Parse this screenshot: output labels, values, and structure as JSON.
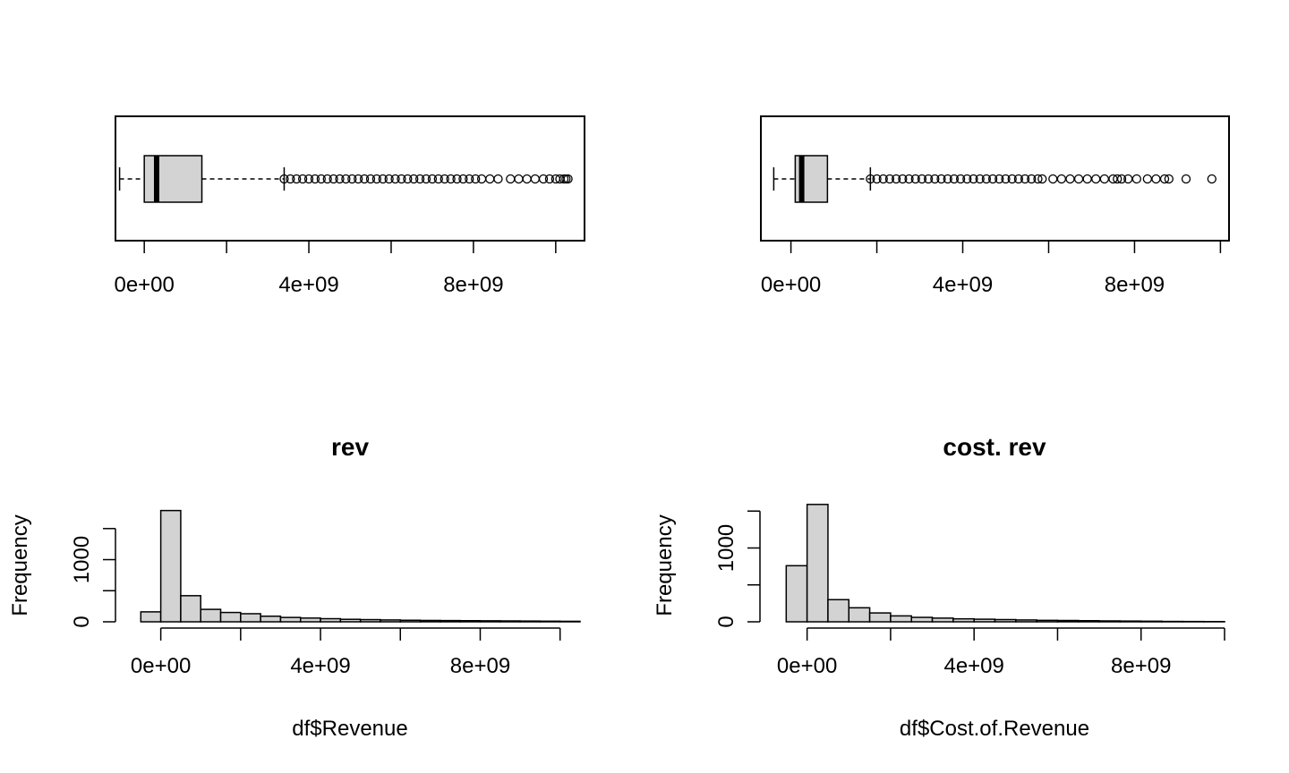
{
  "chart_data": [
    {
      "type": "boxplot",
      "orientation": "horizontal",
      "title": "",
      "xlabel": "",
      "ylabel": "",
      "xlim": [
        -700000000,
        10700000000
      ],
      "x_ticks": [
        0,
        2000000000,
        4000000000,
        6000000000,
        8000000000,
        10000000000
      ],
      "x_tick_labels": [
        "0e+00",
        "4e+09",
        "8e+09"
      ],
      "x_tick_label_values": [
        0,
        4000000000,
        8000000000
      ],
      "stats": {
        "min": -600000000,
        "q1": 0,
        "median": 300000000,
        "q3": 1400000000,
        "max": 3400000000
      },
      "outliers": [
        3400000000,
        3550000000,
        3700000000,
        3850000000,
        4000000000,
        4150000000,
        4300000000,
        4450000000,
        4600000000,
        4750000000,
        4900000000,
        5050000000,
        5200000000,
        5350000000,
        5500000000,
        5650000000,
        5800000000,
        5950000000,
        6100000000,
        6250000000,
        6400000000,
        6550000000,
        6700000000,
        6850000000,
        7000000000,
        7150000000,
        7300000000,
        7450000000,
        7600000000,
        7750000000,
        7900000000,
        8050000000,
        8200000000,
        8400000000,
        8600000000,
        8900000000,
        9100000000,
        9300000000,
        9500000000,
        9700000000,
        9850000000,
        10000000000,
        10100000000,
        10200000000,
        10250000000,
        10300000000
      ]
    },
    {
      "type": "boxplot",
      "orientation": "horizontal",
      "title": "",
      "xlabel": "",
      "ylabel": "",
      "xlim": [
        -700000000,
        10200000000
      ],
      "x_ticks": [
        0,
        2000000000,
        4000000000,
        6000000000,
        8000000000,
        10000000000
      ],
      "x_tick_labels": [
        "0e+00",
        "4e+09",
        "8e+09"
      ],
      "x_tick_label_values": [
        0,
        4000000000,
        8000000000
      ],
      "stats": {
        "min": -400000000,
        "q1": 100000000,
        "median": 250000000,
        "q3": 850000000,
        "max": 1850000000
      },
      "outliers": [
        1850000000,
        2000000000,
        2150000000,
        2300000000,
        2450000000,
        2600000000,
        2750000000,
        2900000000,
        3050000000,
        3200000000,
        3350000000,
        3500000000,
        3650000000,
        3800000000,
        3950000000,
        4100000000,
        4250000000,
        4400000000,
        4550000000,
        4700000000,
        4850000000,
        5000000000,
        5150000000,
        5300000000,
        5450000000,
        5600000000,
        5750000000,
        5850000000,
        6100000000,
        6300000000,
        6500000000,
        6700000000,
        6900000000,
        7100000000,
        7300000000,
        7500000000,
        7600000000,
        7700000000,
        7850000000,
        8050000000,
        8300000000,
        8500000000,
        8700000000,
        8800000000,
        9200000000,
        9800000000
      ]
    },
    {
      "type": "histogram",
      "title": "rev",
      "xlabel": "df$Revenue",
      "ylabel": "Frequency",
      "xlim": [
        -1000000000,
        10500000000
      ],
      "ylim": [
        0,
        1900
      ],
      "x_ticks": [
        0,
        2000000000,
        4000000000,
        6000000000,
        8000000000,
        10000000000
      ],
      "x_tick_labels": [
        "0e+00",
        "4e+09",
        "8e+09"
      ],
      "x_tick_label_values": [
        0,
        4000000000,
        8000000000
      ],
      "y_ticks": [
        0,
        500,
        1000,
        1500
      ],
      "y_tick_labels": [
        "0",
        "1000"
      ],
      "y_tick_label_values": [
        0,
        1000
      ],
      "bin_edges": [
        -500000000,
        0,
        500000000,
        1000000000,
        1500000000,
        2000000000,
        2500000000,
        3000000000,
        3500000000,
        4000000000,
        4500000000,
        5000000000,
        5500000000,
        6000000000,
        6500000000,
        7000000000,
        7500000000,
        8000000000,
        8500000000,
        9000000000,
        9500000000,
        10000000000,
        10500000000
      ],
      "counts": [
        160,
        1790,
        420,
        200,
        150,
        130,
        90,
        70,
        60,
        50,
        40,
        35,
        30,
        25,
        22,
        20,
        18,
        16,
        14,
        12,
        10,
        8
      ]
    },
    {
      "type": "histogram",
      "title": "cost. rev",
      "xlabel": "df$Cost.of.Revenue",
      "ylabel": "Frequency",
      "xlim": [
        -1000000000,
        10000000000
      ],
      "ylim": [
        0,
        1600
      ],
      "x_ticks": [
        0,
        2000000000,
        4000000000,
        6000000000,
        8000000000,
        10000000000
      ],
      "x_tick_labels": [
        "0e+00",
        "4e+09",
        "8e+09"
      ],
      "x_tick_label_values": [
        0,
        4000000000,
        8000000000
      ],
      "y_ticks": [
        0,
        500,
        1000,
        1500
      ],
      "y_tick_labels": [
        "0",
        "1000"
      ],
      "y_tick_label_values": [
        0,
        1000
      ],
      "bin_edges": [
        -500000000,
        0,
        500000000,
        1000000000,
        1500000000,
        2000000000,
        2500000000,
        3000000000,
        3500000000,
        4000000000,
        4500000000,
        5000000000,
        5500000000,
        6000000000,
        6500000000,
        7000000000,
        7500000000,
        8000000000,
        8500000000,
        9000000000,
        9500000000,
        10000000000
      ],
      "counts": [
        760,
        1590,
        300,
        190,
        120,
        80,
        60,
        50,
        40,
        35,
        30,
        25,
        20,
        18,
        15,
        12,
        10,
        8,
        5,
        4,
        3
      ]
    }
  ]
}
